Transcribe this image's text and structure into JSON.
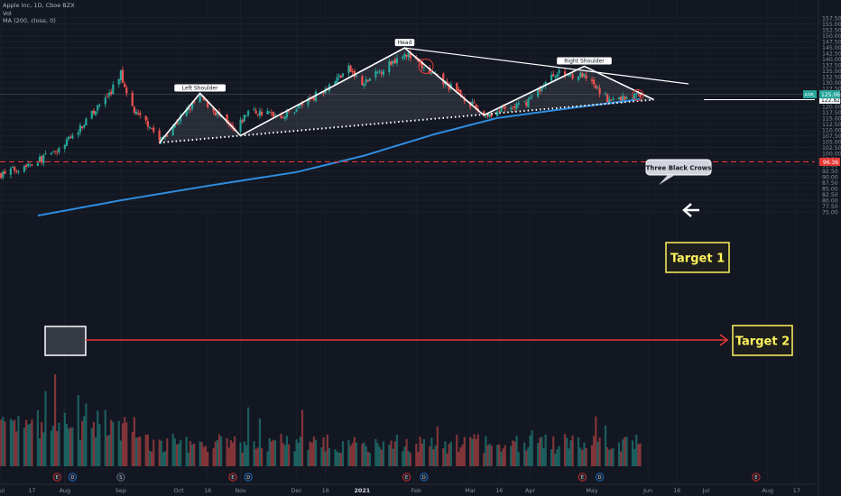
{
  "legend": {
    "symbol_line": "Apple Inc, 1D, Cboe BZX",
    "vol_line": "Vol",
    "ma_line": "MA (200, close, 0)"
  },
  "colors": {
    "background": "#131722",
    "up": "#26a69a",
    "down": "#ef5350",
    "ma": "#2e8de0",
    "pattern_line": "#ffffff",
    "target_red": "#e53935",
    "target_box": "#fff35c",
    "price_badge": "#26a69a"
  },
  "chart_data": {
    "type": "candlestick",
    "title": "Apple Inc, 1D, Cboe BZX",
    "ylim": [
      73,
      160
    ],
    "y_scale": "linear",
    "y_ticks": [
      "75.00",
      "77.50",
      "80.00",
      "82.50",
      "85.00",
      "87.50",
      "90.00",
      "92.50",
      "95.00",
      "97.50",
      "100.00",
      "102.50",
      "105.00",
      "107.50",
      "110.00",
      "112.50",
      "115.00",
      "117.50",
      "120.00",
      "122.50",
      "125.00",
      "127.50",
      "130.00",
      "132.50",
      "135.00",
      "137.50",
      "140.00",
      "142.50",
      "145.00",
      "147.50",
      "150.00",
      "152.50",
      "155.00",
      "157.50"
    ],
    "x_ticks": [
      "Jul",
      "17",
      "Aug",
      "Sep",
      "Oct",
      "16",
      "Nov",
      "Dec",
      "16",
      "2021",
      "Feb",
      "Mar",
      "16",
      "Apr",
      "May",
      "Jun",
      "16",
      "Jul",
      "Aug",
      "17"
    ],
    "price_key_points": [
      {
        "date": "2020-07-01",
        "price": 91
      },
      {
        "date": "2020-07-20",
        "price": 97
      },
      {
        "date": "2020-07-31",
        "price": 101
      },
      {
        "date": "2020-08-12",
        "price": 112
      },
      {
        "date": "2020-08-26",
        "price": 125
      },
      {
        "date": "2020-09-01",
        "price": 134
      },
      {
        "date": "2020-09-08",
        "price": 117
      },
      {
        "date": "2020-09-16",
        "price": 112
      },
      {
        "date": "2020-09-21",
        "price": 105
      },
      {
        "date": "2020-10-12",
        "price": 124
      },
      {
        "date": "2020-10-30",
        "price": 109
      },
      {
        "date": "2020-11-06",
        "price": 118
      },
      {
        "date": "2020-11-25",
        "price": 116
      },
      {
        "date": "2020-12-15",
        "price": 127
      },
      {
        "date": "2020-12-28",
        "price": 136
      },
      {
        "date": "2021-01-04",
        "price": 129
      },
      {
        "date": "2021-01-26",
        "price": 143
      },
      {
        "date": "2021-02-05",
        "price": 136
      },
      {
        "date": "2021-02-24",
        "price": 125
      },
      {
        "date": "2021-03-08",
        "price": 116
      },
      {
        "date": "2021-03-29",
        "price": 121
      },
      {
        "date": "2021-04-14",
        "price": 134
      },
      {
        "date": "2021-04-28",
        "price": 133
      },
      {
        "date": "2021-05-12",
        "price": 122.5
      },
      {
        "date": "2021-05-28",
        "price": 125
      }
    ],
    "ma200_key_points": [
      {
        "date": "2020-07-20",
        "value": 73.5
      },
      {
        "date": "2020-09-01",
        "value": 80
      },
      {
        "date": "2020-10-15",
        "value": 86
      },
      {
        "date": "2020-12-01",
        "value": 92
      },
      {
        "date": "2021-01-05",
        "value": 99
      },
      {
        "date": "2021-02-10",
        "value": 108
      },
      {
        "date": "2021-03-15",
        "value": 115
      },
      {
        "date": "2021-04-20",
        "value": 119
      },
      {
        "date": "2021-05-28",
        "value": 123
      }
    ],
    "pattern_points": [
      {
        "date": "2020-09-21",
        "price": 104.5
      },
      {
        "date": "2020-10-12",
        "price": 125.5
      },
      {
        "date": "2020-11-02",
        "price": 107.5
      },
      {
        "date": "2021-01-26",
        "price": 144.8
      },
      {
        "date": "2021-03-08",
        "price": 116.2
      },
      {
        "date": "2021-04-29",
        "price": 137
      },
      {
        "date": "2021-06-04",
        "price": 122.8
      }
    ],
    "neckline": [
      {
        "date": "2020-09-21",
        "price": 104.5
      },
      {
        "date": "2021-06-04",
        "price": 122.8
      }
    ],
    "resistance_line": [
      {
        "date": "2021-01-26",
        "price": 144.8
      },
      {
        "date": "2021-06-22",
        "price": 129.5
      }
    ],
    "horizontal_levels": [
      {
        "price": 96.36,
        "label": "96.36",
        "style": "dashed"
      },
      {
        "price": 122.82,
        "label": "122.82",
        "style": "solid"
      }
    ],
    "last_price": {
      "price": 125.06,
      "label": "125.06",
      "ticker": "AAPL"
    },
    "annotations": [
      {
        "text": "Left Shoulder",
        "date": "2020-10-12",
        "price": 125.5
      },
      {
        "text": "Head",
        "date": "2021-01-26",
        "price": 144.8
      },
      {
        "text": "Right Shoulder",
        "date": "2021-04-29",
        "price": 137
      },
      {
        "text": "Three Black Crows",
        "date": "2021-05-23",
        "price": 125.5
      },
      {
        "text": "Target 1",
        "date": "2021-06-22",
        "price": 113.5
      },
      {
        "text": "Target 2",
        "date": "2021-07-22",
        "price": 99.5
      }
    ],
    "event_markers": [
      {
        "date": "2020-07-30",
        "letter": "E"
      },
      {
        "date": "2020-08-07",
        "letter": "D"
      },
      {
        "date": "2020-09-01",
        "letter": "S"
      },
      {
        "date": "2020-10-29",
        "letter": "E"
      },
      {
        "date": "2020-11-06",
        "letter": "D"
      },
      {
        "date": "2021-01-27",
        "letter": "E"
      },
      {
        "date": "2021-02-05",
        "letter": "D"
      },
      {
        "date": "2021-04-28",
        "letter": "E"
      },
      {
        "date": "2021-05-07",
        "letter": "D"
      },
      {
        "date": "2021-07-27",
        "letter": "E"
      }
    ]
  }
}
